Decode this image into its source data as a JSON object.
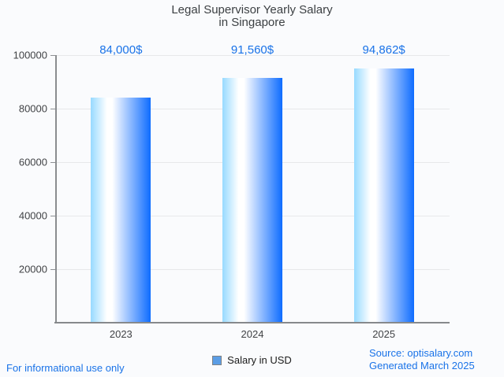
{
  "chart": {
    "title_line1": "Legal Supervisor Yearly Salary",
    "title_line2": "in Singapore"
  },
  "chart_data": {
    "type": "bar",
    "title": "Legal Supervisor Yearly Salary in Singapore",
    "categories": [
      "2023",
      "2024",
      "2025"
    ],
    "values": [
      84000,
      91560,
      94862
    ],
    "value_labels": [
      "84,000$",
      "91,560$",
      "94,862$"
    ],
    "series_name": "Salary in USD",
    "xlabel": "",
    "ylabel": "",
    "ylim": [
      0,
      100000
    ],
    "yticks": [
      20000,
      40000,
      60000,
      80000,
      100000
    ],
    "ytick_labels": [
      "20000",
      "40000",
      "60000",
      "80000",
      "100000"
    ],
    "grid": true,
    "legend_position": "bottom"
  },
  "legend": {
    "label": "Salary in USD"
  },
  "footer": {
    "left": "For informational use only",
    "source": "Source: optisalary.com",
    "generated": "Generated March 2025"
  },
  "colors": {
    "annotation_blue": "#1a73e8",
    "bar_gradient_left": "#97daff",
    "bar_gradient_right": "#0e6cff",
    "legend_swatch": "#5b9de5",
    "background": "#fafbfd"
  }
}
